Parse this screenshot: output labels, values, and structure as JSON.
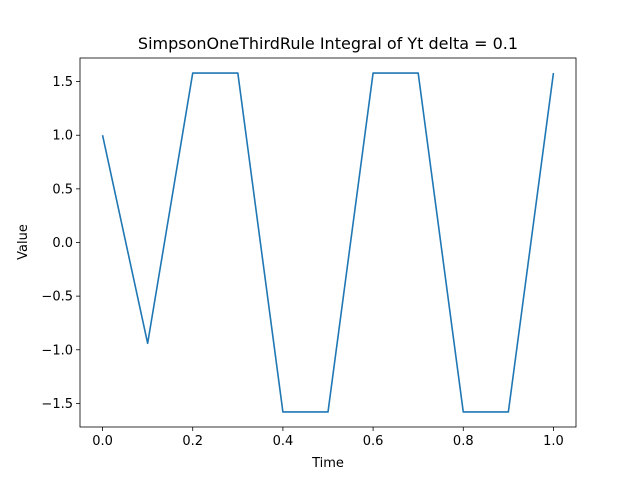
{
  "chart_data": {
    "type": "line",
    "title": "SimpsonOneThirdRule Integral of Yt delta = 0.1",
    "xlabel": "Time",
    "ylabel": "Value",
    "xlim": [
      -0.05,
      1.05
    ],
    "ylim": [
      -1.72,
      1.72
    ],
    "xticks": [
      0.0,
      0.2,
      0.4,
      0.6,
      0.8,
      1.0
    ],
    "xtick_labels": [
      "0.0",
      "0.2",
      "0.4",
      "0.6",
      "0.8",
      "1.0"
    ],
    "yticks": [
      -1.5,
      -1.0,
      -0.5,
      0.0,
      0.5,
      1.0,
      1.5
    ],
    "ytick_labels": [
      "−1.5",
      "−1.0",
      "−0.5",
      "0.0",
      "0.5",
      "1.0",
      "1.5"
    ],
    "grid": false,
    "series": [
      {
        "color": "#1f77b4",
        "x": [
          0.0,
          0.1,
          0.2,
          0.3,
          0.4,
          0.5,
          0.6,
          0.7,
          0.8,
          0.9,
          1.0
        ],
        "y": [
          1.0,
          -0.94,
          1.58,
          1.58,
          -1.58,
          -1.58,
          1.58,
          1.58,
          -1.58,
          -1.58,
          1.58
        ]
      }
    ]
  }
}
